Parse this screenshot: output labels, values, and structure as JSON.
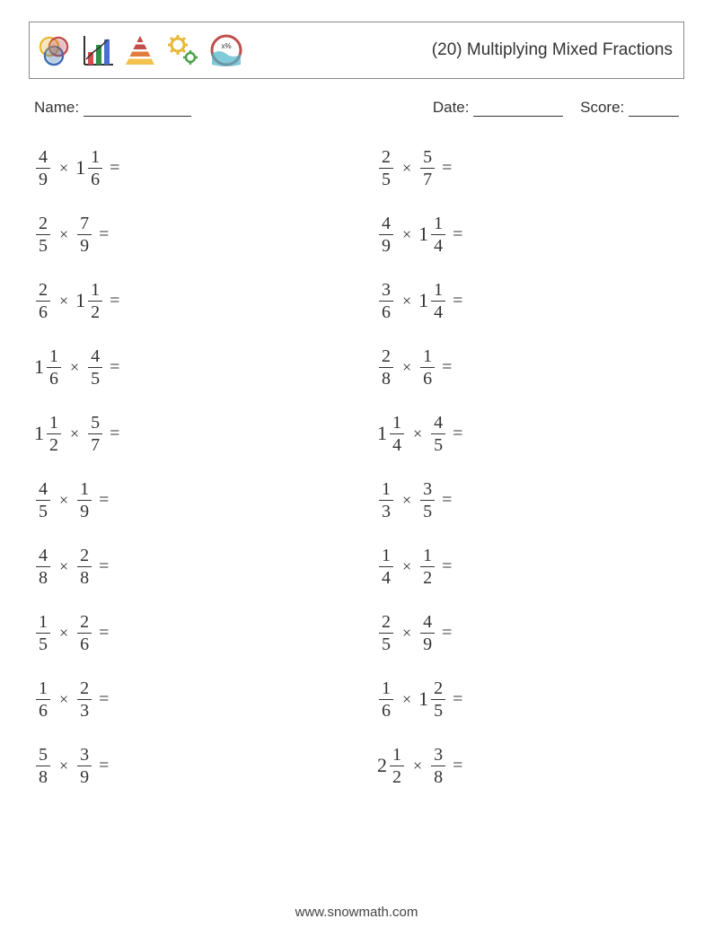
{
  "title": "(20) Multiplying Mixed Fractions",
  "name_label": "Name:",
  "date_label": "Date:",
  "score_label": "Score:",
  "footer": "www.snowmath.com",
  "field_widths": {
    "name": 120,
    "date": 100,
    "score": 56
  },
  "icon_colors": {
    "venn1": "#e8b838",
    "venn2": "#c14d4d",
    "venn3": "#3b6fb5",
    "bar1": "#d94c4c",
    "bar2": "#2f8f46",
    "bar3": "#4a6fd0",
    "axis": "#333",
    "pyr1": "#f2c14e",
    "pyr2": "#e07b3c",
    "pyr3": "#c14d4d",
    "gear1": "#e8b838",
    "gear2": "#4aa24a",
    "ring": "#c14d4d",
    "wave": "#4ab3c9"
  },
  "problems_left": [
    {
      "a": {
        "w": 0,
        "n": 4,
        "d": 9
      },
      "b": {
        "w": 1,
        "n": 1,
        "d": 6
      }
    },
    {
      "a": {
        "w": 0,
        "n": 2,
        "d": 5
      },
      "b": {
        "w": 0,
        "n": 7,
        "d": 9
      }
    },
    {
      "a": {
        "w": 0,
        "n": 2,
        "d": 6
      },
      "b": {
        "w": 1,
        "n": 1,
        "d": 2
      }
    },
    {
      "a": {
        "w": 1,
        "n": 1,
        "d": 6
      },
      "b": {
        "w": 0,
        "n": 4,
        "d": 5
      }
    },
    {
      "a": {
        "w": 1,
        "n": 1,
        "d": 2
      },
      "b": {
        "w": 0,
        "n": 5,
        "d": 7
      }
    },
    {
      "a": {
        "w": 0,
        "n": 4,
        "d": 5
      },
      "b": {
        "w": 0,
        "n": 1,
        "d": 9
      }
    },
    {
      "a": {
        "w": 0,
        "n": 4,
        "d": 8
      },
      "b": {
        "w": 0,
        "n": 2,
        "d": 8
      }
    },
    {
      "a": {
        "w": 0,
        "n": 1,
        "d": 5
      },
      "b": {
        "w": 0,
        "n": 2,
        "d": 6
      }
    },
    {
      "a": {
        "w": 0,
        "n": 1,
        "d": 6
      },
      "b": {
        "w": 0,
        "n": 2,
        "d": 3
      }
    },
    {
      "a": {
        "w": 0,
        "n": 5,
        "d": 8
      },
      "b": {
        "w": 0,
        "n": 3,
        "d": 9
      }
    }
  ],
  "problems_right": [
    {
      "a": {
        "w": 0,
        "n": 2,
        "d": 5
      },
      "b": {
        "w": 0,
        "n": 5,
        "d": 7
      }
    },
    {
      "a": {
        "w": 0,
        "n": 4,
        "d": 9
      },
      "b": {
        "w": 1,
        "n": 1,
        "d": 4
      }
    },
    {
      "a": {
        "w": 0,
        "n": 3,
        "d": 6
      },
      "b": {
        "w": 1,
        "n": 1,
        "d": 4
      }
    },
    {
      "a": {
        "w": 0,
        "n": 2,
        "d": 8
      },
      "b": {
        "w": 0,
        "n": 1,
        "d": 6
      }
    },
    {
      "a": {
        "w": 1,
        "n": 1,
        "d": 4
      },
      "b": {
        "w": 0,
        "n": 4,
        "d": 5
      }
    },
    {
      "a": {
        "w": 0,
        "n": 1,
        "d": 3
      },
      "b": {
        "w": 0,
        "n": 3,
        "d": 5
      }
    },
    {
      "a": {
        "w": 0,
        "n": 1,
        "d": 4
      },
      "b": {
        "w": 0,
        "n": 1,
        "d": 2
      }
    },
    {
      "a": {
        "w": 0,
        "n": 2,
        "d": 5
      },
      "b": {
        "w": 0,
        "n": 4,
        "d": 9
      }
    },
    {
      "a": {
        "w": 0,
        "n": 1,
        "d": 6
      },
      "b": {
        "w": 1,
        "n": 2,
        "d": 5
      }
    },
    {
      "a": {
        "w": 2,
        "n": 1,
        "d": 2
      },
      "b": {
        "w": 0,
        "n": 3,
        "d": 8
      }
    }
  ]
}
